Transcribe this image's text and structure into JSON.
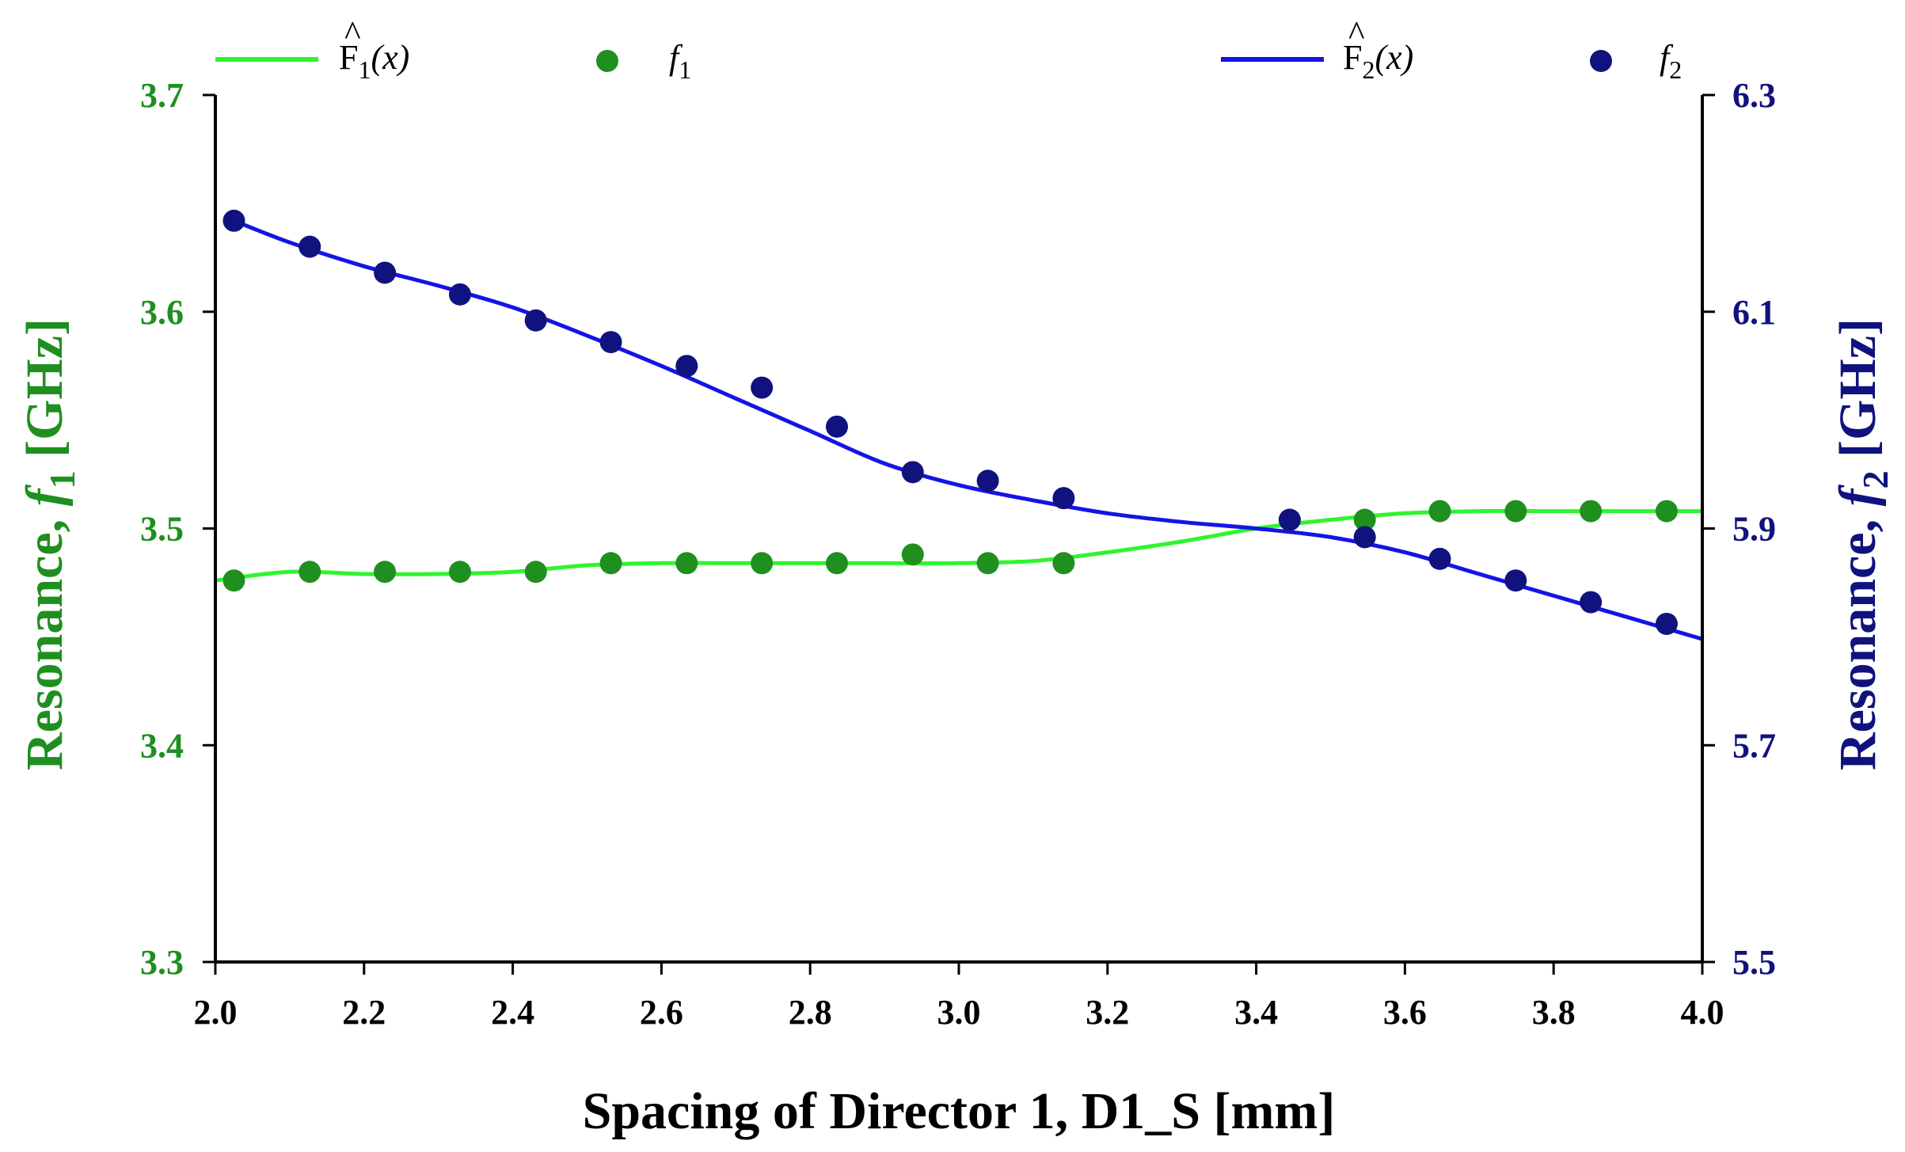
{
  "chart_data": {
    "type": "line",
    "xlabel": "Spacing of Director 1, D1_S [mm]",
    "xlim": [
      2.0,
      4.0
    ],
    "x_ticks": [
      "2.0",
      "2.2",
      "2.4",
      "2.6",
      "2.8",
      "3.0",
      "3.2",
      "3.4",
      "3.6",
      "3.8",
      "4.0"
    ],
    "left_axis": {
      "label_main": "Resonance, ",
      "label_var": "f",
      "label_sub": "1",
      "label_unit": " [GHz]",
      "ylim": [
        3.3,
        3.7
      ],
      "ticks": [
        "3.3",
        "3.4",
        "3.5",
        "3.6",
        "3.7"
      ],
      "color": "#1f8f1f"
    },
    "right_axis": {
      "label_main": "Resonance, ",
      "label_var": "f",
      "label_sub": "2",
      "label_unit": " [GHz]",
      "ylim": [
        5.5,
        6.3
      ],
      "ticks": [
        "5.5",
        "5.7",
        "5.9",
        "6.1",
        "6.3"
      ],
      "color": "#10127e"
    },
    "legend": {
      "placement": "top",
      "items": [
        {
          "hat": "^",
          "base": "F",
          "sub": "1",
          "arg": "(x)",
          "kind": "line",
          "color": "#2ef52e"
        },
        {
          "base": "f",
          "sub": "1",
          "kind": "marker",
          "color": "#1f8f1f"
        },
        {
          "hat": "^",
          "base": "F",
          "sub": "2",
          "arg": "(x)",
          "kind": "line",
          "color": "#1414e6"
        },
        {
          "base": "f",
          "sub": "2",
          "kind": "marker",
          "color": "#10127e"
        }
      ]
    },
    "series": [
      {
        "name": "F1(x)",
        "axis": "left",
        "kind": "line",
        "color": "#2ef52e",
        "x": [
          2.0,
          2.1,
          2.2,
          2.3,
          2.4,
          2.5,
          2.6,
          2.7,
          2.8,
          2.9,
          3.0,
          3.1,
          3.2,
          3.3,
          3.4,
          3.5,
          3.6,
          3.7,
          3.8,
          3.9,
          4.0
        ],
        "y": [
          3.476,
          3.48,
          3.479,
          3.479,
          3.48,
          3.483,
          3.484,
          3.484,
          3.484,
          3.484,
          3.484,
          3.485,
          3.489,
          3.494,
          3.5,
          3.504,
          3.507,
          3.508,
          3.508,
          3.508,
          3.508
        ]
      },
      {
        "name": "f1",
        "axis": "left",
        "kind": "scatter",
        "color": "#1f8f1f",
        "x": [
          2.025,
          2.127,
          2.228,
          2.329,
          2.431,
          2.532,
          2.634,
          2.735,
          2.836,
          2.938,
          3.039,
          3.141,
          3.445,
          3.546,
          3.647,
          3.749,
          3.85,
          3.952
        ],
        "y": [
          3.476,
          3.48,
          3.48,
          3.48,
          3.48,
          3.484,
          3.484,
          3.484,
          3.484,
          3.488,
          3.484,
          3.484,
          3.504,
          3.504,
          3.508,
          3.508,
          3.508,
          3.508
        ]
      },
      {
        "name": "F2(x)",
        "axis": "right",
        "kind": "line",
        "color": "#1414e6",
        "x": [
          2.025,
          2.1,
          2.2,
          2.3,
          2.4,
          2.5,
          2.6,
          2.7,
          2.8,
          2.9,
          3.0,
          3.1,
          3.2,
          3.3,
          3.4,
          3.5,
          3.6,
          3.7,
          3.8,
          3.9,
          4.0
        ],
        "y": [
          6.184,
          6.164,
          6.142,
          6.124,
          6.104,
          6.078,
          6.05,
          6.02,
          5.99,
          5.96,
          5.94,
          5.926,
          5.914,
          5.906,
          5.9,
          5.892,
          5.878,
          5.858,
          5.838,
          5.818,
          5.798
        ]
      },
      {
        "name": "f2",
        "axis": "right",
        "kind": "scatter",
        "color": "#10127e",
        "x": [
          2.025,
          2.127,
          2.228,
          2.329,
          2.431,
          2.532,
          2.634,
          2.735,
          2.836,
          2.938,
          3.039,
          3.141,
          3.445,
          3.546,
          3.647,
          3.749,
          3.85,
          3.952
        ],
        "y": [
          6.184,
          6.16,
          6.136,
          6.116,
          6.092,
          6.072,
          6.05,
          6.03,
          5.994,
          5.952,
          5.944,
          5.928,
          5.908,
          5.892,
          5.872,
          5.852,
          5.832,
          5.812
        ]
      }
    ]
  }
}
